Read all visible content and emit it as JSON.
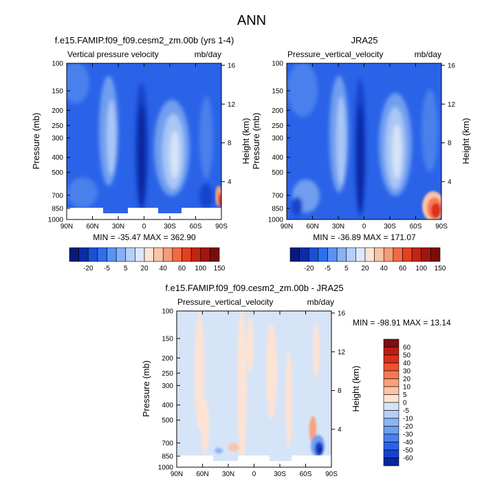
{
  "figure_title": "ANN",
  "colors": {
    "light_blue": "#d6e4f7",
    "mid_blue": "#6f9ff0",
    "blue": "#2a63e8",
    "dark_blue": "#08269e",
    "cream": "#fce6d8",
    "red": "#d9301d",
    "dark_red": "#7b0f0f",
    "mask": "#ffffff"
  },
  "chart_data": [
    {
      "type": "heatmap",
      "title": "f.e15.FAMIP.f09_f09.cesm2_zm.00b (yrs 1-4)",
      "left_label": "Vertical pressure velocity",
      "right_label": "mb/day",
      "ylabel": "Pressure (mb)",
      "y2label": "Height (km)",
      "x_ticks": [
        "90N",
        "60N",
        "30N",
        "0",
        "30S",
        "60S",
        "90S"
      ],
      "y_ticks": [
        "100",
        "150",
        "200",
        "250",
        "300",
        "400",
        "500",
        "700",
        "850",
        "1000"
      ],
      "y2_ticks": [
        "16",
        "12",
        "8",
        "4"
      ],
      "stats": "MIN = -35.47   MAX = 362.90",
      "xlim": [
        90,
        -90
      ],
      "ylim": [
        100,
        1000
      ]
    },
    {
      "type": "heatmap",
      "title": "JRA25",
      "left_label": "Pressure_vertical_velocity",
      "right_label": "mb/day",
      "ylabel": "Pressure (mb)",
      "y2label": "Height (km)",
      "x_ticks": [
        "90N",
        "60N",
        "30N",
        "0",
        "30S",
        "60S",
        "90S"
      ],
      "y_ticks": [
        "100",
        "150",
        "200",
        "250",
        "300",
        "400",
        "500",
        "700",
        "850",
        "1000"
      ],
      "y2_ticks": [
        "16",
        "12",
        "8",
        "4"
      ],
      "stats": "MIN = -36.89   MAX = 171.07",
      "xlim": [
        90,
        -90
      ],
      "ylim": [
        100,
        1000
      ]
    },
    {
      "type": "heatmap",
      "title": "f.e15.FAMIP.f09_f09.cesm2_zm.00b - JRA25",
      "left_label": "Pressure_vertical_velocity",
      "right_label": "mb/day",
      "ylabel": "Pressure (mb)",
      "y2label": "Height (km)",
      "x_ticks": [
        "90N",
        "60N",
        "30N",
        "0",
        "30S",
        "60S",
        "90S"
      ],
      "y_ticks": [
        "100",
        "150",
        "200",
        "250",
        "300",
        "400",
        "500",
        "700",
        "850",
        "1000"
      ],
      "y2_ticks": [
        "16",
        "12",
        "8",
        "4"
      ],
      "stats": "MIN = -98.91   MAX =  13.14",
      "xlim": [
        90,
        -90
      ],
      "ylim": [
        100,
        1000
      ]
    }
  ],
  "colorbars": {
    "top": {
      "labels": [
        "-20",
        "-5",
        "5",
        "20",
        "40",
        "60",
        "100",
        "150"
      ],
      "colors": [
        "#061a7a",
        "#0a2ca8",
        "#1a4fd6",
        "#2e6ef0",
        "#5a92f4",
        "#86b1f6",
        "#b6cff8",
        "#dce8fb",
        "#fbe4d6",
        "#f9c4a6",
        "#f79b78",
        "#f26a45",
        "#e5401f",
        "#c22416",
        "#a11510",
        "#7a0c0c"
      ]
    },
    "bottom": {
      "labels": [
        "60",
        "50",
        "40",
        "30",
        "20",
        "10",
        "5",
        "0",
        "-5",
        "-10",
        "-20",
        "-30",
        "-40",
        "-50",
        "-60"
      ],
      "colors": [
        "#7b0f0f",
        "#b81e14",
        "#d9301d",
        "#ef5330",
        "#f67a52",
        "#f9a07c",
        "#fbc3a8",
        "#fde3d4",
        "#d6e4f7",
        "#b6cff8",
        "#8cb4f4",
        "#6f9ff0",
        "#4a80ec",
        "#2a63e8",
        "#1444cc",
        "#08269e"
      ]
    }
  }
}
